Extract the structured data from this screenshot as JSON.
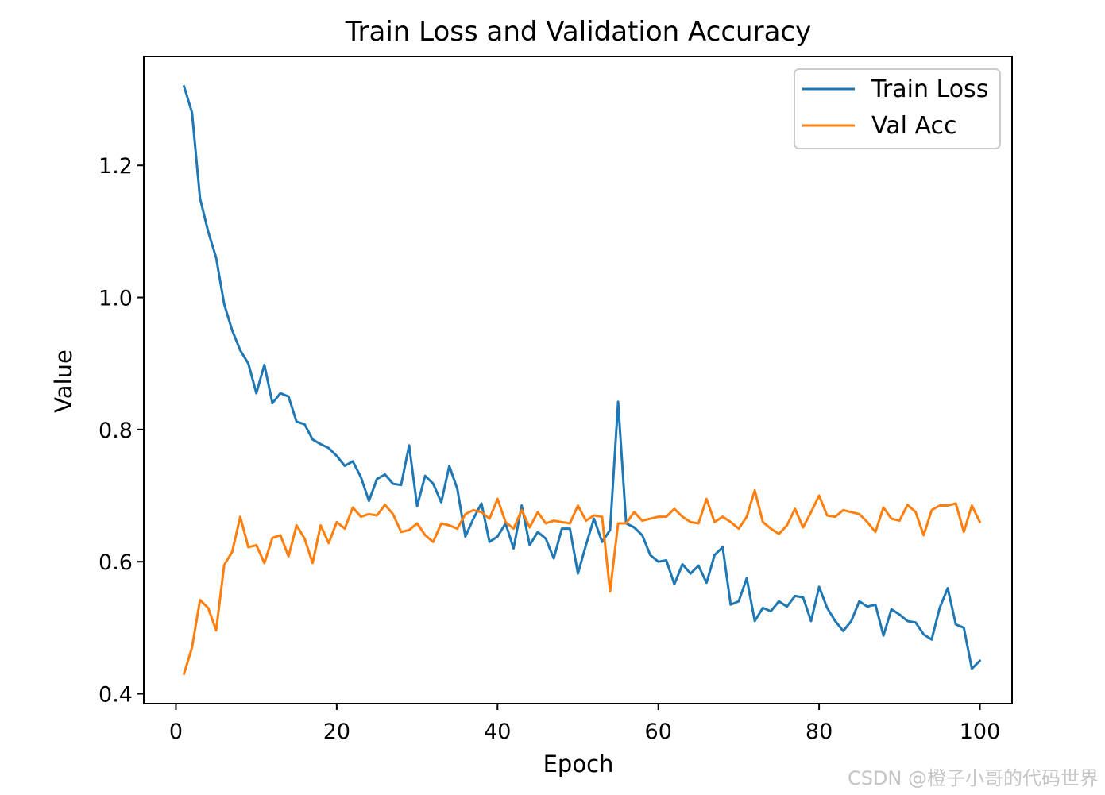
{
  "chart_data": {
    "type": "line",
    "title": "Train Loss and Validation Accuracy",
    "xlabel": "Epoch",
    "ylabel": "Value",
    "xlim": [
      -4,
      104
    ],
    "ylim": [
      0.385,
      1.365
    ],
    "xticks": [
      0,
      20,
      40,
      60,
      80,
      100
    ],
    "xtick_labels": [
      "0",
      "20",
      "40",
      "60",
      "80",
      "100"
    ],
    "yticks": [
      0.4,
      0.6,
      0.8,
      1.0,
      1.2
    ],
    "ytick_labels": [
      "0.4",
      "0.6",
      "0.8",
      "1.0",
      "1.2"
    ],
    "grid": false,
    "legend_position": "top-right",
    "x": [
      1,
      2,
      3,
      4,
      5,
      6,
      7,
      8,
      9,
      10,
      11,
      12,
      13,
      14,
      15,
      16,
      17,
      18,
      19,
      20,
      21,
      22,
      23,
      24,
      25,
      26,
      27,
      28,
      29,
      30,
      31,
      32,
      33,
      34,
      35,
      36,
      37,
      38,
      39,
      40,
      41,
      42,
      43,
      44,
      45,
      46,
      47,
      48,
      49,
      50,
      51,
      52,
      53,
      54,
      55,
      56,
      57,
      58,
      59,
      60,
      61,
      62,
      63,
      64,
      65,
      66,
      67,
      68,
      69,
      70,
      71,
      72,
      73,
      74,
      75,
      76,
      77,
      78,
      79,
      80,
      81,
      82,
      83,
      84,
      85,
      86,
      87,
      88,
      89,
      90,
      91,
      92,
      93,
      94,
      95,
      96,
      97,
      98,
      99,
      100
    ],
    "series": [
      {
        "name": "Train Loss",
        "color": "#1f77b4",
        "values": [
          1.32,
          1.28,
          1.15,
          1.1,
          1.06,
          0.99,
          0.95,
          0.92,
          0.9,
          0.855,
          0.898,
          0.84,
          0.855,
          0.85,
          0.812,
          0.808,
          0.785,
          0.778,
          0.772,
          0.76,
          0.745,
          0.752,
          0.728,
          0.692,
          0.725,
          0.732,
          0.718,
          0.716,
          0.776,
          0.684,
          0.73,
          0.718,
          0.69,
          0.745,
          0.71,
          0.638,
          0.665,
          0.688,
          0.63,
          0.638,
          0.658,
          0.62,
          0.685,
          0.625,
          0.645,
          0.635,
          0.605,
          0.65,
          0.65,
          0.582,
          0.625,
          0.665,
          0.63,
          0.648,
          0.842,
          0.658,
          0.652,
          0.64,
          0.61,
          0.6,
          0.602,
          0.566,
          0.596,
          0.582,
          0.594,
          0.568,
          0.61,
          0.622,
          0.535,
          0.54,
          0.575,
          0.51,
          0.53,
          0.525,
          0.54,
          0.532,
          0.548,
          0.546,
          0.51,
          0.562,
          0.53,
          0.51,
          0.495,
          0.51,
          0.54,
          0.532,
          0.535,
          0.488,
          0.528,
          0.52,
          0.51,
          0.508,
          0.49,
          0.482,
          0.53,
          0.56,
          0.505,
          0.5,
          0.438,
          0.45
        ]
      },
      {
        "name": "Val Acc",
        "color": "#ff7f0e",
        "values": [
          0.43,
          0.47,
          0.542,
          0.53,
          0.496,
          0.595,
          0.615,
          0.668,
          0.622,
          0.625,
          0.598,
          0.636,
          0.64,
          0.608,
          0.655,
          0.635,
          0.598,
          0.655,
          0.628,
          0.66,
          0.65,
          0.682,
          0.668,
          0.672,
          0.67,
          0.686,
          0.672,
          0.645,
          0.648,
          0.658,
          0.64,
          0.63,
          0.658,
          0.655,
          0.65,
          0.672,
          0.678,
          0.675,
          0.665,
          0.695,
          0.66,
          0.65,
          0.678,
          0.652,
          0.675,
          0.658,
          0.662,
          0.66,
          0.658,
          0.685,
          0.662,
          0.67,
          0.668,
          0.555,
          0.658,
          0.658,
          0.675,
          0.662,
          0.665,
          0.668,
          0.668,
          0.68,
          0.668,
          0.66,
          0.658,
          0.695,
          0.66,
          0.668,
          0.66,
          0.65,
          0.668,
          0.708,
          0.66,
          0.65,
          0.642,
          0.655,
          0.68,
          0.652,
          0.675,
          0.7,
          0.67,
          0.668,
          0.678,
          0.675,
          0.672,
          0.66,
          0.645,
          0.682,
          0.665,
          0.662,
          0.686,
          0.675,
          0.64,
          0.678,
          0.685,
          0.685,
          0.688,
          0.645,
          0.685,
          0.66
        ]
      }
    ]
  },
  "watermark": "CSDN @橙子小哥的代码世界"
}
